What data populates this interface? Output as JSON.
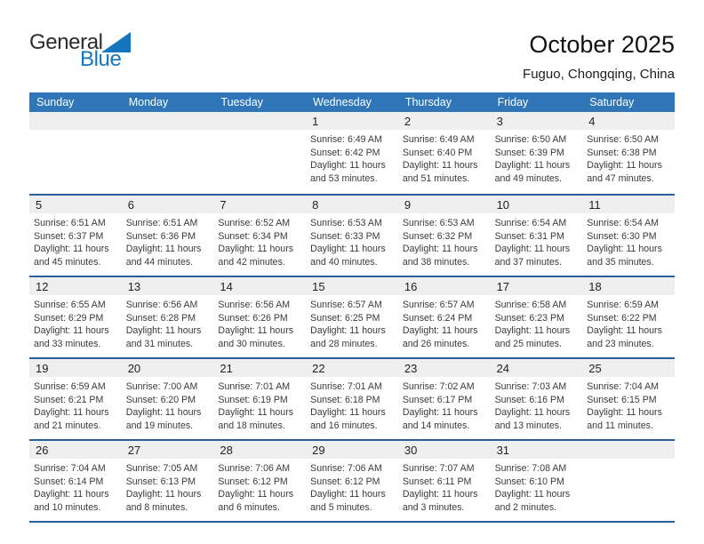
{
  "logo": {
    "line1": "General",
    "line2": "Blue"
  },
  "header": {
    "title": "October 2025",
    "subtitle": "Fuguo, Chongqing, China"
  },
  "colors": {
    "header_bar": "#2e76b8",
    "week_separator": "#2a5f9e",
    "day_number_band": "#efefef",
    "logo_blue": "#1476bf"
  },
  "calendar": {
    "day_headers": [
      "Sunday",
      "Monday",
      "Tuesday",
      "Wednesday",
      "Thursday",
      "Friday",
      "Saturday"
    ],
    "weeks": [
      [
        null,
        null,
        null,
        {
          "day": "1",
          "lines": [
            "Sunrise: 6:49 AM",
            "Sunset: 6:42 PM",
            "Daylight: 11 hours",
            "and 53 minutes."
          ]
        },
        {
          "day": "2",
          "lines": [
            "Sunrise: 6:49 AM",
            "Sunset: 6:40 PM",
            "Daylight: 11 hours",
            "and 51 minutes."
          ]
        },
        {
          "day": "3",
          "lines": [
            "Sunrise: 6:50 AM",
            "Sunset: 6:39 PM",
            "Daylight: 11 hours",
            "and 49 minutes."
          ]
        },
        {
          "day": "4",
          "lines": [
            "Sunrise: 6:50 AM",
            "Sunset: 6:38 PM",
            "Daylight: 11 hours",
            "and 47 minutes."
          ]
        }
      ],
      [
        {
          "day": "5",
          "lines": [
            "Sunrise: 6:51 AM",
            "Sunset: 6:37 PM",
            "Daylight: 11 hours",
            "and 45 minutes."
          ]
        },
        {
          "day": "6",
          "lines": [
            "Sunrise: 6:51 AM",
            "Sunset: 6:36 PM",
            "Daylight: 11 hours",
            "and 44 minutes."
          ]
        },
        {
          "day": "7",
          "lines": [
            "Sunrise: 6:52 AM",
            "Sunset: 6:34 PM",
            "Daylight: 11 hours",
            "and 42 minutes."
          ]
        },
        {
          "day": "8",
          "lines": [
            "Sunrise: 6:53 AM",
            "Sunset: 6:33 PM",
            "Daylight: 11 hours",
            "and 40 minutes."
          ]
        },
        {
          "day": "9",
          "lines": [
            "Sunrise: 6:53 AM",
            "Sunset: 6:32 PM",
            "Daylight: 11 hours",
            "and 38 minutes."
          ]
        },
        {
          "day": "10",
          "lines": [
            "Sunrise: 6:54 AM",
            "Sunset: 6:31 PM",
            "Daylight: 11 hours",
            "and 37 minutes."
          ]
        },
        {
          "day": "11",
          "lines": [
            "Sunrise: 6:54 AM",
            "Sunset: 6:30 PM",
            "Daylight: 11 hours",
            "and 35 minutes."
          ]
        }
      ],
      [
        {
          "day": "12",
          "lines": [
            "Sunrise: 6:55 AM",
            "Sunset: 6:29 PM",
            "Daylight: 11 hours",
            "and 33 minutes."
          ]
        },
        {
          "day": "13",
          "lines": [
            "Sunrise: 6:56 AM",
            "Sunset: 6:28 PM",
            "Daylight: 11 hours",
            "and 31 minutes."
          ]
        },
        {
          "day": "14",
          "lines": [
            "Sunrise: 6:56 AM",
            "Sunset: 6:26 PM",
            "Daylight: 11 hours",
            "and 30 minutes."
          ]
        },
        {
          "day": "15",
          "lines": [
            "Sunrise: 6:57 AM",
            "Sunset: 6:25 PM",
            "Daylight: 11 hours",
            "and 28 minutes."
          ]
        },
        {
          "day": "16",
          "lines": [
            "Sunrise: 6:57 AM",
            "Sunset: 6:24 PM",
            "Daylight: 11 hours",
            "and 26 minutes."
          ]
        },
        {
          "day": "17",
          "lines": [
            "Sunrise: 6:58 AM",
            "Sunset: 6:23 PM",
            "Daylight: 11 hours",
            "and 25 minutes."
          ]
        },
        {
          "day": "18",
          "lines": [
            "Sunrise: 6:59 AM",
            "Sunset: 6:22 PM",
            "Daylight: 11 hours",
            "and 23 minutes."
          ]
        }
      ],
      [
        {
          "day": "19",
          "lines": [
            "Sunrise: 6:59 AM",
            "Sunset: 6:21 PM",
            "Daylight: 11 hours",
            "and 21 minutes."
          ]
        },
        {
          "day": "20",
          "lines": [
            "Sunrise: 7:00 AM",
            "Sunset: 6:20 PM",
            "Daylight: 11 hours",
            "and 19 minutes."
          ]
        },
        {
          "day": "21",
          "lines": [
            "Sunrise: 7:01 AM",
            "Sunset: 6:19 PM",
            "Daylight: 11 hours",
            "and 18 minutes."
          ]
        },
        {
          "day": "22",
          "lines": [
            "Sunrise: 7:01 AM",
            "Sunset: 6:18 PM",
            "Daylight: 11 hours",
            "and 16 minutes."
          ]
        },
        {
          "day": "23",
          "lines": [
            "Sunrise: 7:02 AM",
            "Sunset: 6:17 PM",
            "Daylight: 11 hours",
            "and 14 minutes."
          ]
        },
        {
          "day": "24",
          "lines": [
            "Sunrise: 7:03 AM",
            "Sunset: 6:16 PM",
            "Daylight: 11 hours",
            "and 13 minutes."
          ]
        },
        {
          "day": "25",
          "lines": [
            "Sunrise: 7:04 AM",
            "Sunset: 6:15 PM",
            "Daylight: 11 hours",
            "and 11 minutes."
          ]
        }
      ],
      [
        {
          "day": "26",
          "lines": [
            "Sunrise: 7:04 AM",
            "Sunset: 6:14 PM",
            "Daylight: 11 hours",
            "and 10 minutes."
          ]
        },
        {
          "day": "27",
          "lines": [
            "Sunrise: 7:05 AM",
            "Sunset: 6:13 PM",
            "Daylight: 11 hours",
            "and 8 minutes."
          ]
        },
        {
          "day": "28",
          "lines": [
            "Sunrise: 7:06 AM",
            "Sunset: 6:12 PM",
            "Daylight: 11 hours",
            "and 6 minutes."
          ]
        },
        {
          "day": "29",
          "lines": [
            "Sunrise: 7:06 AM",
            "Sunset: 6:12 PM",
            "Daylight: 11 hours",
            "and 5 minutes."
          ]
        },
        {
          "day": "30",
          "lines": [
            "Sunrise: 7:07 AM",
            "Sunset: 6:11 PM",
            "Daylight: 11 hours",
            "and 3 minutes."
          ]
        },
        {
          "day": "31",
          "lines": [
            "Sunrise: 7:08 AM",
            "Sunset: 6:10 PM",
            "Daylight: 11 hours",
            "and 2 minutes."
          ]
        },
        null
      ]
    ]
  }
}
